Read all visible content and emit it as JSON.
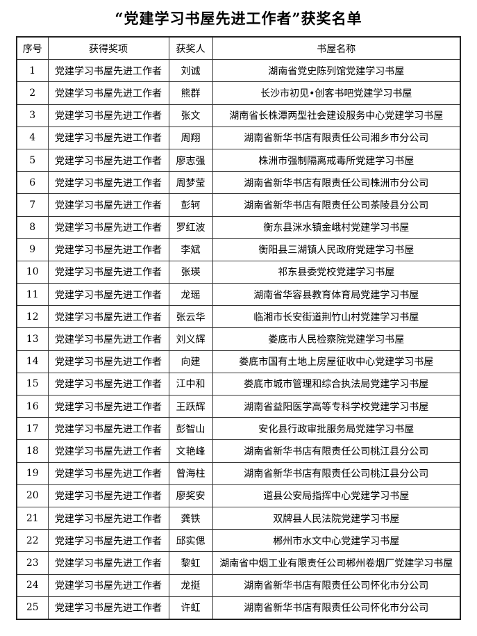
{
  "page": {
    "title": "“党建学习书屋先进工作者”获奖名单"
  },
  "table": {
    "headers": [
      "序号",
      "获得奖项",
      "获奖人",
      "书屋名称"
    ],
    "rows": [
      [
        "1",
        "党建学习书屋先进工作者",
        "刘诚",
        "湖南省党史陈列馆党建学习书屋"
      ],
      [
        "2",
        "党建学习书屋先进工作者",
        "熊群",
        "长沙市初见•创客书吧党建学习书屋"
      ],
      [
        "3",
        "党建学习书屋先进工作者",
        "张文",
        "湖南省长株潭两型社会建设服务中心党建学习书屋"
      ],
      [
        "4",
        "党建学习书屋先进工作者",
        "周翔",
        "湖南省新华书店有限责任公司湘乡市分公司"
      ],
      [
        "5",
        "党建学习书屋先进工作者",
        "廖志强",
        "株洲市强制隔离戒毒所党建学习书屋"
      ],
      [
        "6",
        "党建学习书屋先进工作者",
        "周梦莹",
        "湖南省新华书店有限责任公司株洲市分公司"
      ],
      [
        "7",
        "党建学习书屋先进工作者",
        "彭轲",
        "湖南省新华书店有限责任公司茶陵县分公司"
      ],
      [
        "8",
        "党建学习书屋先进工作者",
        "罗红波",
        "衡东县洣水镇金峨村党建学习书屋"
      ],
      [
        "9",
        "党建学习书屋先进工作者",
        "李斌",
        "衡阳县三湖镇人民政府党建学习书屋"
      ],
      [
        "10",
        "党建学习书屋先进工作者",
        "张瑛",
        "祁东县委党校党建学习书屋"
      ],
      [
        "11",
        "党建学习书屋先进工作者",
        "龙瑶",
        "湖南省华容县教育体育局党建学习书屋"
      ],
      [
        "12",
        "党建学习书屋先进工作者",
        "张云华",
        "临湘市长安街道荆竹山村党建学习书屋"
      ],
      [
        "13",
        "党建学习书屋先进工作者",
        "刘义辉",
        "娄底市人民检察院党建学习书屋"
      ],
      [
        "14",
        "党建学习书屋先进工作者",
        "向建",
        "娄底市国有土地上房屋征收中心党建学习书屋"
      ],
      [
        "15",
        "党建学习书屋先进工作者",
        "江中和",
        "娄底市城市管理和综合执法局党建学习书屋"
      ],
      [
        "16",
        "党建学习书屋先进工作者",
        "王跃辉",
        "湖南省益阳医学高等专科学校党建学习书屋"
      ],
      [
        "17",
        "党建学习书屋先进工作者",
        "彭智山",
        "安化县行政审批服务局党建学习书屋"
      ],
      [
        "18",
        "党建学习书屋先进工作者",
        "文艳峰",
        "湖南省新华书店有限责任公司桃江县分公司"
      ],
      [
        "19",
        "党建学习书屋先进工作者",
        "曾海柱",
        "湖南省新华书店有限责任公司桃江县分公司"
      ],
      [
        "20",
        "党建学习书屋先进工作者",
        "廖奖安",
        "道县公安局指挥中心党建学习书屋"
      ],
      [
        "21",
        "党建学习书屋先进工作者",
        "龚铁",
        "双牌县人民法院党建学习书屋"
      ],
      [
        "22",
        "党建学习书屋先进工作者",
        "邱实偲",
        "郴州市水文中心党建学习书屋"
      ],
      [
        "23",
        "党建学习书屋先进工作者",
        "黎虹",
        "湖南省中烟工业有限责任公司郴州卷烟厂党建学习书屋"
      ],
      [
        "24",
        "党建学习书屋先进工作者",
        "龙挺",
        "湖南省新华书店有限责任公司怀化市分公司"
      ],
      [
        "25",
        "党建学习书屋先进工作者",
        "许虹",
        "湖南省新华书店有限责任公司怀化市分公司"
      ]
    ]
  }
}
